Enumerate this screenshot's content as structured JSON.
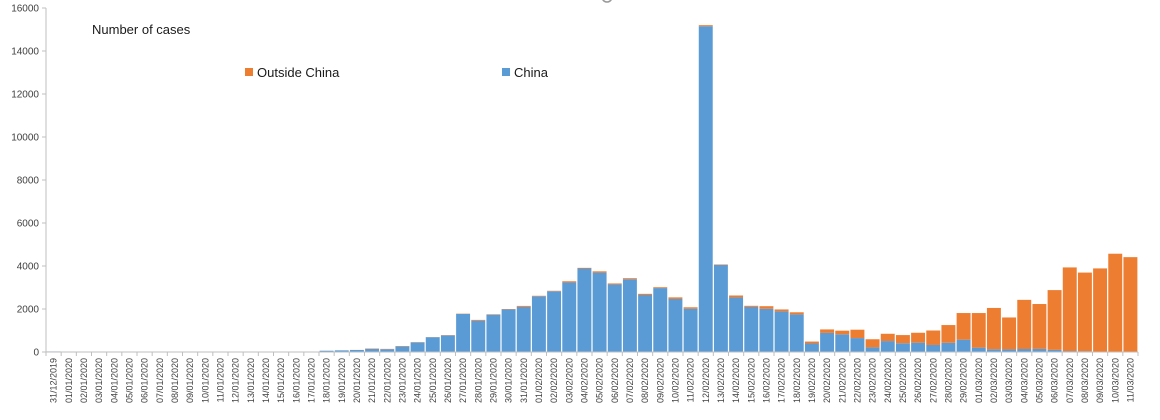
{
  "chart_data": {
    "type": "bar",
    "stacked": true,
    "title": "Number of cases",
    "legend": [
      {
        "name": "Outside China",
        "color": "#ED7D31"
      },
      {
        "name": "China",
        "color": "#5B9BD5"
      }
    ],
    "legend_placement": "top",
    "ylim": [
      0,
      16000
    ],
    "yticks": [
      0,
      2000,
      4000,
      6000,
      8000,
      10000,
      12000,
      14000,
      16000
    ],
    "grid": false,
    "categories": [
      "31/12/2019",
      "01/01/2020",
      "02/01/2020",
      "03/01/2020",
      "04/01/2020",
      "05/01/2020",
      "06/01/2020",
      "07/01/2020",
      "08/01/2020",
      "09/01/2020",
      "10/01/2020",
      "11/01/2020",
      "12/01/2020",
      "13/01/2020",
      "14/01/2020",
      "15/01/2020",
      "16/01/2020",
      "17/01/2020",
      "18/01/2020",
      "19/01/2020",
      "20/01/2020",
      "21/01/2020",
      "22/01/2020",
      "23/01/2020",
      "24/01/2020",
      "25/01/2020",
      "26/01/2020",
      "27/01/2020",
      "28/01/2020",
      "29/01/2020",
      "30/01/2020",
      "31/01/2020",
      "01/02/2020",
      "02/02/2020",
      "03/02/2020",
      "04/02/2020",
      "05/02/2020",
      "06/02/2020",
      "07/02/2020",
      "08/02/2020",
      "09/02/2020",
      "10/02/2020",
      "11/02/2020",
      "12/02/2020",
      "13/02/2020",
      "14/02/2020",
      "15/02/2020",
      "16/02/2020",
      "17/02/2020",
      "18/02/2020",
      "19/02/2020",
      "20/02/2020",
      "21/02/2020",
      "22/02/2020",
      "23/02/2020",
      "24/02/2020",
      "25/02/2020",
      "26/02/2020",
      "27/02/2020",
      "28/02/2020",
      "29/02/2020",
      "01/03/2020",
      "02/03/2020",
      "03/03/2020",
      "04/03/2020",
      "05/03/2020",
      "06/03/2020",
      "07/03/2020",
      "08/03/2020",
      "09/03/2020",
      "10/03/2020",
      "11/03/2020"
    ],
    "series": [
      {
        "name": "China",
        "color": "#5B9BD5",
        "values": [
          27,
          0,
          0,
          17,
          0,
          15,
          0,
          0,
          0,
          0,
          0,
          0,
          0,
          1,
          0,
          0,
          4,
          17,
          59,
          77,
          93,
          149,
          131,
          259,
          444,
          688,
          769,
          1771,
          1459,
          1737,
          1981,
          2099,
          2589,
          2825,
          3235,
          3884,
          3694,
          3143,
          3385,
          2652,
          2973,
          2467,
          2015,
          15152,
          4050,
          2538,
          2097,
          2008,
          1888,
          1749,
          394,
          889,
          823,
          648,
          214,
          508,
          406,
          433,
          327,
          427,
          573,
          202,
          125,
          119,
          139,
          143,
          99,
          44,
          40,
          19,
          24,
          15
        ]
      },
      {
        "name": "Outside China",
        "color": "#ED7D31",
        "values": [
          0,
          0,
          0,
          0,
          0,
          0,
          0,
          0,
          0,
          0,
          0,
          0,
          0,
          1,
          0,
          1,
          0,
          0,
          2,
          0,
          4,
          17,
          14,
          17,
          12,
          7,
          15,
          14,
          35,
          18,
          19,
          45,
          26,
          22,
          55,
          30,
          58,
          46,
          48,
          53,
          40,
          74,
          65,
          50,
          23,
          90,
          52,
          122,
          91,
          98,
          91,
          161,
          169,
          389,
          379,
          340,
          381,
          462,
          673,
          826,
          1239,
          1610,
          1924,
          1487,
          2286,
          2089,
          2780,
          3890,
          3654,
          3869,
          4547,
          4397
        ]
      }
    ]
  }
}
